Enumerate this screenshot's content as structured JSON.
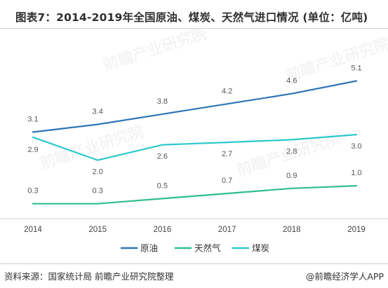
{
  "title": "图表7：2014-2019年全国原油、煤炭、天然气进口情况 (单位：亿吨)",
  "source": "资料来源：国家统计局 前瞻产业研究院整理",
  "credit": "@前瞻经济学人APP",
  "watermark": "前瞻产业研究院",
  "colors": {
    "原油": "#2e75b6",
    "天然气": "#2ec08a",
    "煤炭": "#2cc9cc"
  },
  "chart_data": {
    "type": "line",
    "x": [
      "2014",
      "2015",
      "2016",
      "2017",
      "2018",
      "2019"
    ],
    "ylim": [
      0,
      5.5
    ],
    "grid": false,
    "legend_position": "bottom",
    "series": [
      {
        "name": "原油",
        "values": [
          3.1,
          3.4,
          3.8,
          4.2,
          4.6,
          5.1
        ],
        "labels": [
          "3.1",
          "3.4",
          "3.8",
          "4.2",
          "4.6",
          "5.1"
        ]
      },
      {
        "name": "天然气",
        "values": [
          0.3,
          0.3,
          0.5,
          0.7,
          0.9,
          1.0
        ],
        "labels": [
          "0.3",
          "0.3",
          "0.5",
          "0.7",
          "0.9",
          "1.0"
        ]
      },
      {
        "name": "煤炭",
        "values": [
          2.9,
          2.0,
          2.6,
          2.7,
          2.8,
          3.0
        ],
        "labels": [
          "2.9",
          "2.0",
          "2.6",
          "2.7",
          "2.8",
          "3.0"
        ]
      }
    ]
  }
}
